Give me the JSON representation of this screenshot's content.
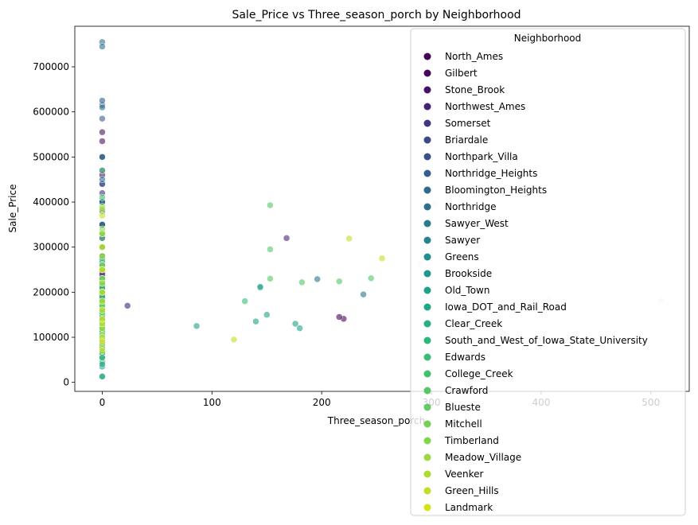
{
  "chart_data": {
    "type": "scatter",
    "title": "Sale_Price vs Three_season_porch by Neighborhood",
    "xlabel": "Three_season_porch",
    "ylabel": "Sale_Price",
    "xlim": [
      -25,
      535
    ],
    "ylim": [
      -20000,
      790000
    ],
    "xticks": [
      0,
      100,
      200,
      300,
      400,
      500
    ],
    "yticks": [
      0,
      100000,
      200000,
      300000,
      400000,
      500000,
      600000,
      700000
    ],
    "grid": false,
    "legend_title": "Neighborhood",
    "legend_position": "upper-right",
    "marker_alpha": 0.6,
    "series": [
      {
        "name": "North_Ames",
        "color": "#440154",
        "points": [
          [
            0,
            130000
          ],
          [
            0,
            140000
          ],
          [
            0,
            150000
          ],
          [
            0,
            160000
          ],
          [
            0,
            175000
          ],
          [
            0,
            190000
          ],
          [
            0,
            200000
          ],
          [
            0,
            215000
          ],
          [
            220,
            141000
          ],
          [
            216,
            145000
          ]
        ]
      },
      {
        "name": "Gilbert",
        "color": "#46085c",
        "points": [
          [
            0,
            180000
          ],
          [
            0,
            195000
          ],
          [
            0,
            205000
          ],
          [
            0,
            210000
          ],
          [
            0,
            225000
          ],
          [
            0,
            235000
          ],
          [
            0,
            245000
          ]
        ]
      },
      {
        "name": "Stone_Brook",
        "color": "#471164",
        "points": [
          [
            0,
            320000
          ],
          [
            0,
            350000
          ],
          [
            0,
            400000
          ],
          [
            0,
            440000
          ],
          [
            0,
            460000
          ],
          [
            0,
            500000
          ],
          [
            0,
            555000
          ],
          [
            0,
            535000
          ]
        ]
      },
      {
        "name": "Northwest_Ames",
        "color": "#472374",
        "points": [
          [
            0,
            170000
          ],
          [
            0,
            185000
          ],
          [
            0,
            200000
          ],
          [
            0,
            215000
          ],
          [
            0,
            240000
          ],
          [
            23,
            170000
          ],
          [
            168,
            320000
          ]
        ]
      },
      {
        "name": "Somerset",
        "color": "#45347f",
        "points": [
          [
            0,
            200000
          ],
          [
            0,
            220000
          ],
          [
            0,
            250000
          ],
          [
            0,
            280000
          ],
          [
            0,
            300000
          ],
          [
            0,
            350000
          ],
          [
            0,
            380000
          ],
          [
            0,
            420000
          ],
          [
            0,
            470000
          ]
        ]
      },
      {
        "name": "Briardale",
        "color": "#3f4788",
        "points": [
          [
            0,
            85000
          ],
          [
            0,
            95000
          ],
          [
            0,
            105000
          ],
          [
            0,
            115000
          ],
          [
            0,
            125000
          ]
        ]
      },
      {
        "name": "Northpark_Villa",
        "color": "#3a528b",
        "points": [
          [
            0,
            120000
          ],
          [
            0,
            130000
          ],
          [
            0,
            140000
          ],
          [
            0,
            150000
          ]
        ]
      },
      {
        "name": "Northridge_Heights",
        "color": "#355e8d",
        "points": [
          [
            0,
            300000
          ],
          [
            0,
            350000
          ],
          [
            0,
            400000
          ],
          [
            0,
            440000
          ],
          [
            0,
            500000
          ],
          [
            0,
            585000
          ],
          [
            0,
            615000
          ],
          [
            0,
            625000
          ]
        ]
      },
      {
        "name": "Bloomington_Heights",
        "color": "#31688e",
        "points": [
          [
            0,
            165000
          ],
          [
            0,
            180000
          ],
          [
            0,
            200000
          ],
          [
            0,
            215000
          ],
          [
            0,
            230000
          ],
          [
            0,
            250000
          ],
          [
            0,
            265000
          ]
        ]
      },
      {
        "name": "Northridge",
        "color": "#2d718e",
        "points": [
          [
            0,
            260000
          ],
          [
            0,
            300000
          ],
          [
            0,
            350000
          ],
          [
            0,
            400000
          ],
          [
            0,
            450000
          ],
          [
            0,
            500000
          ],
          [
            0,
            610000
          ],
          [
            0,
            755000
          ],
          [
            0,
            745000
          ],
          [
            196,
            229000
          ],
          [
            238,
            195000
          ]
        ]
      },
      {
        "name": "Sawyer_West",
        "color": "#297b8e",
        "points": [
          [
            0,
            140000
          ],
          [
            0,
            160000
          ],
          [
            0,
            175000
          ],
          [
            0,
            190000
          ],
          [
            0,
            200000
          ],
          [
            0,
            210000
          ],
          [
            0,
            230000
          ],
          [
            0,
            250000
          ]
        ]
      },
      {
        "name": "Sawyer",
        "color": "#25848e",
        "points": [
          [
            0,
            85000
          ],
          [
            0,
            100000
          ],
          [
            0,
            110000
          ],
          [
            0,
            120000
          ],
          [
            0,
            130000
          ],
          [
            0,
            140000
          ],
          [
            0,
            150000
          ],
          [
            0,
            160000
          ]
        ]
      },
      {
        "name": "Greens",
        "color": "#218f8d",
        "points": [
          [
            0,
            170000
          ],
          [
            0,
            190000
          ],
          [
            0,
            200000
          ],
          [
            0,
            215000
          ]
        ]
      },
      {
        "name": "Brookside",
        "color": "#1f978b",
        "points": [
          [
            0,
            55000
          ],
          [
            0,
            70000
          ],
          [
            0,
            90000
          ],
          [
            0,
            110000
          ],
          [
            0,
            125000
          ],
          [
            0,
            140000
          ],
          [
            0,
            155000
          ],
          [
            0,
            170000
          ]
        ]
      },
      {
        "name": "Old_Town",
        "color": "#1ea187",
        "points": [
          [
            0,
            13000
          ],
          [
            0,
            35000
          ],
          [
            0,
            45000
          ],
          [
            0,
            65000
          ],
          [
            0,
            80000
          ],
          [
            0,
            100000
          ],
          [
            0,
            115000
          ],
          [
            0,
            135000
          ],
          [
            0,
            150000
          ],
          [
            0,
            175000
          ],
          [
            0,
            200000
          ],
          [
            0,
            250000
          ],
          [
            0,
            280000
          ],
          [
            86,
            125000
          ],
          [
            140,
            135000
          ],
          [
            144,
            210000
          ],
          [
            144,
            212000
          ],
          [
            150,
            150000
          ],
          [
            176,
            130000
          ],
          [
            180,
            120000
          ]
        ]
      },
      {
        "name": "Iowa_DOT_and_Rail_Road",
        "color": "#21a685",
        "points": [
          [
            0,
            13000
          ],
          [
            0,
            40000
          ],
          [
            0,
            55000
          ],
          [
            0,
            65000
          ],
          [
            0,
            80000
          ],
          [
            0,
            95000
          ],
          [
            0,
            110000
          ],
          [
            0,
            120000
          ],
          [
            0,
            135000
          ],
          [
            0,
            145000
          ]
        ]
      },
      {
        "name": "Clear_Creek",
        "color": "#28ae80",
        "points": [
          [
            0,
            150000
          ],
          [
            0,
            180000
          ],
          [
            0,
            210000
          ],
          [
            0,
            230000
          ],
          [
            0,
            270000
          ]
        ]
      },
      {
        "name": "South_and_West_of_Iowa_State_University",
        "color": "#2fb47c",
        "points": [
          [
            0,
            95000
          ],
          [
            0,
            115000
          ],
          [
            0,
            125000
          ],
          [
            0,
            140000
          ],
          [
            0,
            155000
          ]
        ]
      },
      {
        "name": "Edwards",
        "color": "#3bbb75",
        "points": [
          [
            0,
            55000
          ],
          [
            0,
            75000
          ],
          [
            0,
            100000
          ],
          [
            0,
            120000
          ],
          [
            0,
            140000
          ],
          [
            0,
            160000
          ],
          [
            0,
            175000
          ],
          [
            0,
            200000
          ],
          [
            0,
            250000
          ],
          [
            0,
            320000
          ],
          [
            130,
            180000
          ]
        ]
      },
      {
        "name": "College_Creek",
        "color": "#44bf70",
        "points": [
          [
            0,
            150000
          ],
          [
            0,
            170000
          ],
          [
            0,
            190000
          ],
          [
            0,
            210000
          ],
          [
            0,
            230000
          ],
          [
            0,
            250000
          ],
          [
            0,
            275000
          ],
          [
            0,
            300000
          ],
          [
            0,
            330000
          ],
          [
            0,
            410000
          ],
          [
            0,
            470000
          ]
        ]
      },
      {
        "name": "Crawford",
        "color": "#56c667",
        "points": [
          [
            0,
            130000
          ],
          [
            0,
            160000
          ],
          [
            0,
            180000
          ],
          [
            0,
            200000
          ],
          [
            0,
            230000
          ],
          [
            0,
            260000
          ],
          [
            0,
            300000
          ],
          [
            0,
            330000
          ],
          [
            0,
            380000
          ],
          [
            153,
            393000
          ],
          [
            153,
            295000
          ],
          [
            153,
            230000
          ],
          [
            182,
            222000
          ],
          [
            216,
            224000
          ],
          [
            245,
            231000
          ]
        ]
      },
      {
        "name": "Blueste",
        "color": "#63cb5f",
        "points": [
          [
            0,
            115000
          ],
          [
            0,
            125000
          ],
          [
            0,
            145000
          ],
          [
            0,
            155000
          ]
        ]
      },
      {
        "name": "Mitchell",
        "color": "#75d054",
        "points": [
          [
            0,
            100000
          ],
          [
            0,
            120000
          ],
          [
            0,
            140000
          ],
          [
            0,
            160000
          ],
          [
            0,
            180000
          ],
          [
            0,
            200000
          ],
          [
            0,
            220000
          ],
          [
            0,
            250000
          ]
        ]
      },
      {
        "name": "Timberland",
        "color": "#85d54a",
        "points": [
          [
            0,
            170000
          ],
          [
            0,
            200000
          ],
          [
            0,
            230000
          ],
          [
            0,
            260000
          ],
          [
            0,
            300000
          ],
          [
            0,
            340000
          ],
          [
            0,
            390000
          ]
        ]
      },
      {
        "name": "Meadow_Village",
        "color": "#9bd93c",
        "points": [
          [
            0,
            75000
          ],
          [
            0,
            85000
          ],
          [
            0,
            95000
          ],
          [
            0,
            105000
          ],
          [
            0,
            120000
          ],
          [
            0,
            130000
          ]
        ]
      },
      {
        "name": "Veenker",
        "color": "#aadc32",
        "points": [
          [
            0,
            180000
          ],
          [
            0,
            220000
          ],
          [
            0,
            250000
          ],
          [
            0,
            280000
          ],
          [
            0,
            330000
          ],
          [
            0,
            385000
          ]
        ]
      },
      {
        "name": "Green_Hills",
        "color": "#c2df23",
        "points": [
          [
            0,
            100000
          ],
          [
            0,
            130000
          ],
          [
            0,
            160000
          ],
          [
            0,
            200000
          ],
          [
            0,
            250000
          ],
          [
            0,
            300000
          ],
          [
            0,
            370000
          ],
          [
            120,
            95000
          ],
          [
            225,
            319000
          ],
          [
            255,
            275000
          ]
        ]
      },
      {
        "name": "Landmark",
        "color": "#d5e21a",
        "points": [
          [
            0,
            70000
          ],
          [
            0,
            90000
          ],
          [
            0,
            140000
          ]
        ]
      },
      {
        "name": "",
        "color": "#ffffff",
        "points": []
      }
    ],
    "faint_points": [
      [
        303,
        395000
      ],
      [
        290,
        262000
      ],
      [
        362,
        143000
      ],
      [
        407,
        183000
      ],
      [
        509,
        181000
      ]
    ]
  }
}
